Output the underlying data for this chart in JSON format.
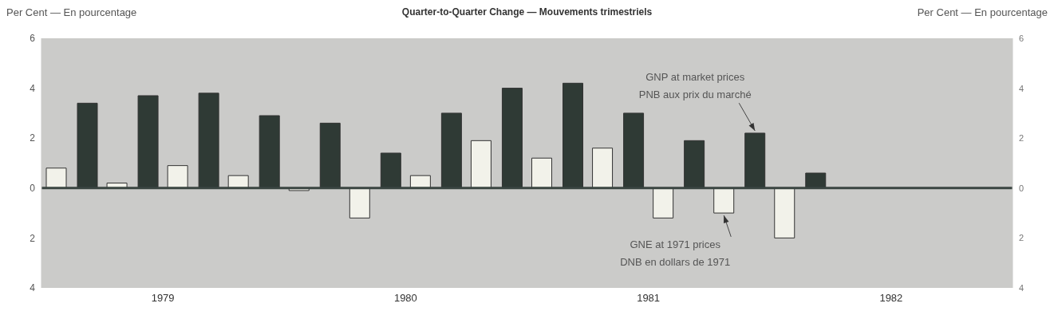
{
  "chart_data": {
    "type": "bar",
    "title": "Quarter-to-Quarter Change — Mouvements trimestriels",
    "ylabel": "Per Cent — En pourcentage",
    "y2label": "Per Cent — En pourcentage",
    "categories": [
      null,
      null,
      null,
      null,
      null,
      null,
      null,
      null,
      null,
      null,
      null,
      null,
      null,
      null,
      null,
      null
    ],
    "series": [
      {
        "name": "GNE at 1971 prices",
        "color": "#f2f2ea",
        "values": [
          0.8,
          0.2,
          0.9,
          0.5,
          -0.1,
          -1.2,
          0.5,
          1.9,
          1.2,
          1.6,
          -1.2,
          -1.0,
          -2.0,
          null,
          null,
          null
        ]
      },
      {
        "name": "GNP at market prices",
        "color": "#2f3a35",
        "values": [
          3.4,
          3.7,
          3.8,
          2.9,
          2.6,
          1.4,
          3.0,
          4.0,
          4.2,
          3.0,
          1.9,
          2.2,
          0.6,
          null,
          null,
          null
        ]
      }
    ],
    "annotations": [
      "1979",
      "1980",
      "1981",
      "1982",
      "DNB en dollars de 1971",
      "PNB aux prix du marché"
    ],
    "ylim": [
      -4,
      6
    ],
    "yticks": [
      {
        "value": -4,
        "label": "4"
      },
      {
        "value": -2,
        "label": "2"
      },
      0,
      2,
      4,
      6
    ],
    "y2lim": [
      -4,
      6
    ],
    "y2ticks": [
      {
        "value": -4,
        "label": "4"
      },
      {
        "value": -2,
        "label": "2"
      },
      0,
      2,
      4,
      6
    ],
    "ref_lines": [
      {
        "axis": "y",
        "value": 0,
        "color": "#3a4541"
      }
    ]
  }
}
